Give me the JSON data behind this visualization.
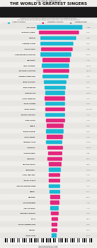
{
  "title_small": "THE VOCAL RANGES OF",
  "title_large": "THE WORLD'S GREATEST SINGERS",
  "subtitle1": "Compare the vocal ranges of today's top artists with the greatest of all time.",
  "subtitle2": "The chart shows the highest and lowest notes each singer hit in the recording studio.",
  "bg_color": "#f0eeeb",
  "bar_color_cyan": "#1ab8d4",
  "bar_color_pink": "#e4277e",
  "photo_strip_color": "#2a2a2a",
  "legend_cyan": "TODAY'S ARTISTS",
  "legend_pink": "YESTERDAY'S ARTISTS",
  "legend_dot": "CURRENT NOTES",
  "singers": [
    {
      "name": "AXL ROSE",
      "lo": 0,
      "hi": 0.93,
      "color": "#1ab8d4",
      "notes": "F1-Bb6"
    },
    {
      "name": "MARIAH CAREY",
      "lo": 0.05,
      "hi": 0.85,
      "color": "#e4277e",
      "notes": "E2-G7"
    },
    {
      "name": "PRINCE",
      "lo": 0.07,
      "hi": 0.79,
      "color": "#1ab8d4",
      "notes": "E2-B6"
    },
    {
      "name": "STEVEN TYLER",
      "lo": 0.08,
      "hi": 0.74,
      "color": "#1ab8d4",
      "notes": "C2-C6"
    },
    {
      "name": "ALICIA KEYS",
      "lo": 0.09,
      "hi": 0.72,
      "color": "#e4277e",
      "notes": "F2-E6"
    },
    {
      "name": "CHESTER BENNINGTON",
      "lo": 0.08,
      "hi": 0.7,
      "color": "#1ab8d4",
      "notes": "C2-D6"
    },
    {
      "name": "BEYONCE",
      "lo": 0.12,
      "hi": 0.67,
      "color": "#e4277e",
      "notes": "A2-E6"
    },
    {
      "name": "TINA TURNER",
      "lo": 0.11,
      "hi": 0.65,
      "color": "#1ab8d4",
      "notes": "Ab2-D6"
    },
    {
      "name": "MICHAEL JACKSON",
      "lo": 0.13,
      "hi": 0.65,
      "color": "#e4277e",
      "notes": "D3-F#6"
    },
    {
      "name": "FREDDIE MERCURY",
      "lo": 0.12,
      "hi": 0.63,
      "color": "#1ab8d4",
      "notes": "F2-G5"
    },
    {
      "name": "JOHN LENNON",
      "lo": 0.15,
      "hi": 0.59,
      "color": "#1ab8d4",
      "notes": "E2-A5"
    },
    {
      "name": "ROD STEWART",
      "lo": 0.16,
      "hi": 0.58,
      "color": "#1ab8d4",
      "notes": "E2-A5"
    },
    {
      "name": "BOB DYLAN",
      "lo": 0.17,
      "hi": 0.57,
      "color": "#1ab8d4",
      "notes": "G2-G5"
    },
    {
      "name": "ELVIS PRESLEY",
      "lo": 0.16,
      "hi": 0.57,
      "color": "#e4277e",
      "notes": "A1-A5"
    },
    {
      "name": "MICK JAGGER",
      "lo": 0.17,
      "hi": 0.56,
      "color": "#1ab8d4",
      "notes": "E2-D5"
    },
    {
      "name": "NICKI MINAJ",
      "lo": 0.18,
      "hi": 0.57,
      "color": "#e4277e",
      "notes": "C#3-C#6"
    },
    {
      "name": "FRANK SINATRA",
      "lo": 0.18,
      "hi": 0.56,
      "color": "#1ab8d4",
      "notes": "F2-A4"
    },
    {
      "name": "LADY GAGA",
      "lo": 0.19,
      "hi": 0.56,
      "color": "#e4277e",
      "notes": "F2-G5"
    },
    {
      "name": "ADELE",
      "lo": 0.2,
      "hi": 0.54,
      "color": "#e4277e",
      "notes": "C3-E6"
    },
    {
      "name": "DAVID BOWIE",
      "lo": 0.19,
      "hi": 0.54,
      "color": "#1ab8d4",
      "notes": "E2-F5"
    },
    {
      "name": "KATY PERRY",
      "lo": 0.2,
      "hi": 0.52,
      "color": "#e4277e",
      "notes": "F2-A5"
    },
    {
      "name": "JOHNNY CASH",
      "lo": 0.19,
      "hi": 0.5,
      "color": "#1ab8d4",
      "notes": "E2-F#4"
    },
    {
      "name": "RIHANNA",
      "lo": 0.22,
      "hi": 0.52,
      "color": "#e4277e",
      "notes": "C#3-C6"
    },
    {
      "name": "KANYE WEST",
      "lo": 0.23,
      "hi": 0.5,
      "color": "#e4277e",
      "notes": "E2-E5"
    },
    {
      "name": "SHAKIRA",
      "lo": 0.22,
      "hi": 0.51,
      "color": "#e4277e",
      "notes": "G2-C6"
    },
    {
      "name": "TAYLOR SWIFT",
      "lo": 0.24,
      "hi": 0.49,
      "color": "#e4277e",
      "notes": "D3-E5"
    },
    {
      "name": "MADONNA",
      "lo": 0.24,
      "hi": 0.48,
      "color": "#1ab8d4",
      "notes": "F#2-F5"
    },
    {
      "name": "LANA DEL REY",
      "lo": 0.24,
      "hi": 0.47,
      "color": "#e4277e",
      "notes": "F2-G5"
    },
    {
      "name": "MILEY CYRUS",
      "lo": 0.25,
      "hi": 0.47,
      "color": "#e4277e",
      "notes": "F2-F5"
    },
    {
      "name": "BRUCE SPRINGSTEEN",
      "lo": 0.25,
      "hi": 0.47,
      "color": "#1ab8d4",
      "notes": "E2-A4"
    },
    {
      "name": "BONO",
      "lo": 0.26,
      "hi": 0.46,
      "color": "#1ab8d4",
      "notes": "C2-A4"
    },
    {
      "name": "EMINEM",
      "lo": 0.27,
      "hi": 0.46,
      "color": "#e4277e",
      "notes": "B2-D5"
    },
    {
      "name": "JUSTIN BIEBER",
      "lo": 0.27,
      "hi": 0.45,
      "color": "#e4277e",
      "notes": "A2-F5"
    },
    {
      "name": "CELINE DION",
      "lo": 0.28,
      "hi": 0.44,
      "color": "#1ab8d4",
      "notes": "A2-C6"
    },
    {
      "name": "BRITNEY SPEARS",
      "lo": 0.29,
      "hi": 0.43,
      "color": "#e4277e",
      "notes": "E3-D5"
    },
    {
      "name": "JAY Z",
      "lo": 0.3,
      "hi": 0.42,
      "color": "#e4277e",
      "notes": "D3-C5"
    },
    {
      "name": "JUSTIN TIMBERLAKE",
      "lo": 0.3,
      "hi": 0.41,
      "color": "#e4277e",
      "notes": "C3-F5"
    },
    {
      "name": "DRAKE",
      "lo": 0.31,
      "hi": 0.4,
      "color": "#e4277e",
      "notes": "C3-D5"
    },
    {
      "name": "NICK CAVE",
      "lo": 0.3,
      "hi": 0.39,
      "color": "#1ab8d4",
      "notes": "D2-G5"
    }
  ],
  "footer": "CONCERTHOTELS.COM"
}
